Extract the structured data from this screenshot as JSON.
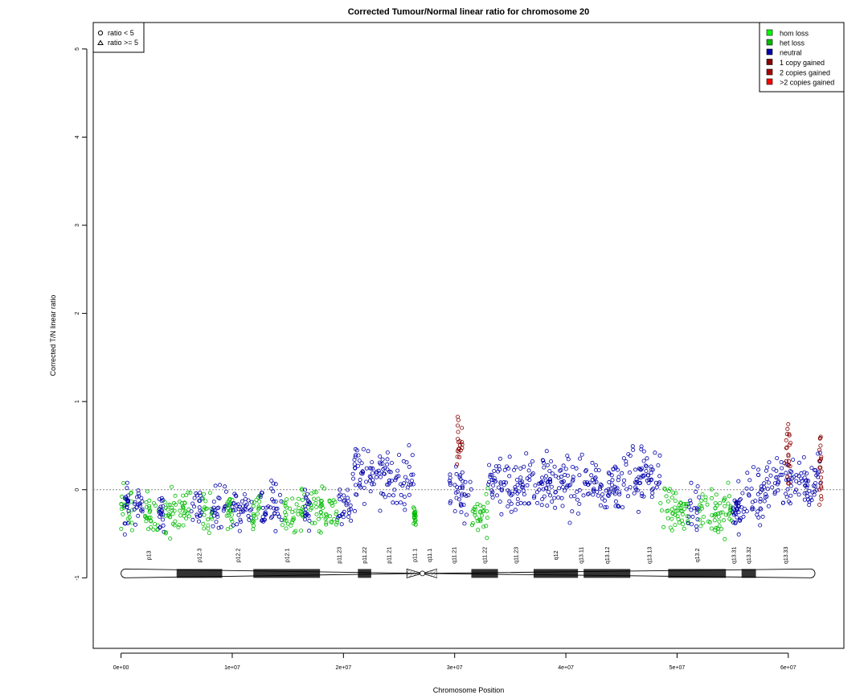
{
  "chart_data": {
    "type": "scatter",
    "title": "Corrected Tumour/Normal linear ratio for chromosome  20",
    "xlabel": "Chromosome Position",
    "ylabel": "Corrected T/N linear ratio",
    "xlim": [
      -2500000,
      65000000
    ],
    "ylim": [
      -1.8,
      5.3
    ],
    "x_ticks": [
      0,
      10000000,
      20000000,
      30000000,
      40000000,
      50000000,
      60000000
    ],
    "x_tick_labels": [
      "0e+00",
      "1e+07",
      "2e+07",
      "3e+07",
      "4e+07",
      "5e+07",
      "6e+07"
    ],
    "y_ticks": [
      -1,
      0,
      1,
      2,
      3,
      4,
      5
    ],
    "y_tick_labels": [
      "-1",
      "0",
      "1",
      "2",
      "3",
      "4",
      "5"
    ],
    "reference_line_y": 0,
    "shape_legend": {
      "placement": "top-left",
      "items": [
        {
          "symbol": "circle",
          "label": "ratio < 5"
        },
        {
          "symbol": "triangle",
          "label": "ratio >= 5"
        }
      ]
    },
    "legend": {
      "placement": "top-right",
      "items": [
        {
          "label": "hom loss",
          "color": "#00ff00"
        },
        {
          "label": "het loss",
          "color": "#00bb00"
        },
        {
          "label": "neutral",
          "color": "#0000aa"
        },
        {
          "label": "1 copy gained",
          "color": "#880000"
        },
        {
          "label": "2 copies gained",
          "color": "#aa0000"
        },
        {
          "label": ">2 copies gained",
          "color": "#ff0000"
        }
      ]
    },
    "segments": [
      {
        "start": 0,
        "end": 1100000,
        "state": "het loss",
        "mean": -0.22,
        "sd": 0.13
      },
      {
        "start": 300000,
        "end": 700000,
        "state": "neutral",
        "mean": -0.18,
        "sd": 0.14
      },
      {
        "start": 1100000,
        "end": 2000000,
        "state": "neutral",
        "mean": -0.22,
        "sd": 0.12
      },
      {
        "start": 2000000,
        "end": 3400000,
        "state": "het loss",
        "mean": -0.26,
        "sd": 0.13
      },
      {
        "start": 3400000,
        "end": 3900000,
        "state": "neutral",
        "mean": -0.22,
        "sd": 0.12
      },
      {
        "start": 3900000,
        "end": 6300000,
        "state": "het loss",
        "mean": -0.26,
        "sd": 0.13
      },
      {
        "start": 6300000,
        "end": 7300000,
        "state": "neutral",
        "mean": -0.22,
        "sd": 0.12
      },
      {
        "start": 7300000,
        "end": 8200000,
        "state": "het loss",
        "mean": -0.26,
        "sd": 0.12
      },
      {
        "start": 8200000,
        "end": 9500000,
        "state": "neutral",
        "mean": -0.22,
        "sd": 0.12
      },
      {
        "start": 9500000,
        "end": 10000000,
        "state": "het loss",
        "mean": -0.26,
        "sd": 0.12
      },
      {
        "start": 10000000,
        "end": 11800000,
        "state": "neutral",
        "mean": -0.2,
        "sd": 0.12
      },
      {
        "start": 11800000,
        "end": 12500000,
        "state": "het loss",
        "mean": -0.24,
        "sd": 0.12
      },
      {
        "start": 12500000,
        "end": 14500000,
        "state": "neutral",
        "mean": -0.2,
        "sd": 0.12
      },
      {
        "start": 14500000,
        "end": 16500000,
        "state": "het loss",
        "mean": -0.24,
        "sd": 0.12
      },
      {
        "start": 16500000,
        "end": 17000000,
        "state": "neutral",
        "mean": -0.2,
        "sd": 0.12
      },
      {
        "start": 17000000,
        "end": 19500000,
        "state": "het loss",
        "mean": -0.24,
        "sd": 0.12
      },
      {
        "start": 19500000,
        "end": 20800000,
        "state": "neutral",
        "mean": -0.2,
        "sd": 0.12
      },
      {
        "start": 20800000,
        "end": 26300000,
        "state": "neutral",
        "mean": 0.14,
        "sd": 0.15
      },
      {
        "start": 26300000,
        "end": 26500000,
        "state": "het loss",
        "mean": -0.3,
        "sd": 0.08
      },
      {
        "start": 29500000,
        "end": 31500000,
        "state": "neutral",
        "mean": 0.02,
        "sd": 0.17
      },
      {
        "start": 30200000,
        "end": 30700000,
        "state": "1 copy gained",
        "mean": 0.5,
        "sd": 0.12
      },
      {
        "start": 31500000,
        "end": 33000000,
        "state": "het loss",
        "mean": -0.3,
        "sd": 0.12
      },
      {
        "start": 33000000,
        "end": 45000000,
        "state": "neutral",
        "mean": 0.08,
        "sd": 0.15
      },
      {
        "start": 45000000,
        "end": 48500000,
        "state": "neutral",
        "mean": 0.15,
        "sd": 0.17
      },
      {
        "start": 48500000,
        "end": 51000000,
        "state": "het loss",
        "mean": -0.25,
        "sd": 0.13
      },
      {
        "start": 51000000,
        "end": 52000000,
        "state": "neutral",
        "mean": -0.22,
        "sd": 0.13
      },
      {
        "start": 52000000,
        "end": 55000000,
        "state": "het loss",
        "mean": -0.25,
        "sd": 0.13
      },
      {
        "start": 55000000,
        "end": 55500000,
        "state": "neutral",
        "mean": -0.22,
        "sd": 0.12
      },
      {
        "start": 55500000,
        "end": 58000000,
        "state": "neutral",
        "mean": -0.1,
        "sd": 0.15
      },
      {
        "start": 58000000,
        "end": 62900000,
        "state": "neutral",
        "mean": 0.1,
        "sd": 0.14
      },
      {
        "start": 59800000,
        "end": 60200000,
        "state": "1 copy gained",
        "mean": 0.4,
        "sd": 0.2
      },
      {
        "start": 62800000,
        "end": 63000000,
        "state": "1 copy gained",
        "mean": 0.3,
        "sd": 0.25
      }
    ],
    "cytobands": {
      "y": -0.95,
      "bands": [
        {
          "name": "p13",
          "start": 0,
          "end": 5000000,
          "stain": "gneg"
        },
        {
          "name": "p12.3",
          "start": 5000000,
          "end": 9100000,
          "stain": "gpos"
        },
        {
          "name": "p12.2",
          "start": 9100000,
          "end": 11900000,
          "stain": "gneg"
        },
        {
          "name": "p12.1",
          "start": 11900000,
          "end": 17900000,
          "stain": "gpos"
        },
        {
          "name": "p11.23",
          "start": 17900000,
          "end": 21300000,
          "stain": "gneg"
        },
        {
          "name": "p11.22",
          "start": 21300000,
          "end": 22500000,
          "stain": "gpos"
        },
        {
          "name": "p11.21",
          "start": 22500000,
          "end": 25700000,
          "stain": "gneg"
        },
        {
          "name": "p11.1",
          "start": 25700000,
          "end": 27100000,
          "stain": "acen"
        },
        {
          "name": "q11.1",
          "start": 27100000,
          "end": 28400000,
          "stain": "acen"
        },
        {
          "name": "q11.21",
          "start": 28400000,
          "end": 31500000,
          "stain": "gneg"
        },
        {
          "name": "q11.22",
          "start": 31500000,
          "end": 33900000,
          "stain": "gpos"
        },
        {
          "name": "q11.23",
          "start": 33900000,
          "end": 37100000,
          "stain": "gneg"
        },
        {
          "name": "q12",
          "start": 37100000,
          "end": 41100000,
          "stain": "gpos"
        },
        {
          "name": "q13.11",
          "start": 41100000,
          "end": 41600000,
          "stain": "gneg"
        },
        {
          "name": "q13.12",
          "start": 41600000,
          "end": 45800000,
          "stain": "gpos"
        },
        {
          "name": "q13.13",
          "start": 45800000,
          "end": 49200000,
          "stain": "gneg"
        },
        {
          "name": "q13.2",
          "start": 49200000,
          "end": 54400000,
          "stain": "gpos"
        },
        {
          "name": "q13.31",
          "start": 54400000,
          "end": 55800000,
          "stain": "gneg"
        },
        {
          "name": "q13.32",
          "start": 55800000,
          "end": 57100000,
          "stain": "gpos"
        },
        {
          "name": "q13.33",
          "start": 57100000,
          "end": 62400000,
          "stain": "gneg"
        }
      ]
    }
  }
}
